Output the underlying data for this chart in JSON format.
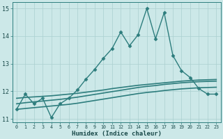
{
  "xlabel": "Humidex (Indice chaleur)",
  "ylabel": "",
  "background_color": "#cce8e8",
  "grid_color": "#aacfcf",
  "line_color": "#2d7d7d",
  "xlim": [
    -0.5,
    23.5
  ],
  "ylim": [
    10.88,
    15.22
  ],
  "yticks": [
    11,
    12,
    13,
    14,
    15
  ],
  "xticks": [
    0,
    1,
    2,
    3,
    4,
    5,
    6,
    7,
    8,
    9,
    10,
    11,
    12,
    13,
    14,
    15,
    16,
    17,
    18,
    19,
    20,
    21,
    22,
    23
  ],
  "series": [
    {
      "x": [
        0,
        1,
        2,
        3,
        4,
        5,
        6,
        7,
        8,
        9,
        10,
        11,
        12,
        13,
        14,
        15,
        16,
        17,
        18,
        19,
        20,
        21,
        22,
        23
      ],
      "y": [
        11.35,
        11.9,
        11.55,
        11.75,
        11.05,
        11.55,
        11.75,
        12.05,
        12.45,
        12.8,
        13.2,
        13.55,
        14.15,
        13.65,
        14.05,
        15.0,
        13.9,
        14.85,
        13.3,
        12.75,
        12.5,
        12.1,
        11.9,
        11.9
      ],
      "marker": "D",
      "markersize": 2.5,
      "linewidth": 1.0,
      "with_markers": true
    },
    {
      "x": [
        0,
        1,
        2,
        3,
        4,
        5,
        6,
        7,
        8,
        9,
        10,
        11,
        12,
        13,
        14,
        15,
        16,
        17,
        18,
        19,
        20,
        21,
        22,
        23
      ],
      "y": [
        11.75,
        11.78,
        11.8,
        11.82,
        11.84,
        11.87,
        11.9,
        11.93,
        11.97,
        12.01,
        12.05,
        12.1,
        12.14,
        12.18,
        12.22,
        12.25,
        12.28,
        12.31,
        12.34,
        12.37,
        12.39,
        12.41,
        12.42,
        12.43
      ],
      "marker": null,
      "linewidth": 1.2,
      "with_markers": false
    },
    {
      "x": [
        0,
        1,
        2,
        3,
        4,
        5,
        6,
        7,
        8,
        9,
        10,
        11,
        12,
        13,
        14,
        15,
        16,
        17,
        18,
        19,
        20,
        21,
        22,
        23
      ],
      "y": [
        11.55,
        11.59,
        11.62,
        11.65,
        11.68,
        11.71,
        11.75,
        11.79,
        11.84,
        11.89,
        11.94,
        11.99,
        12.04,
        12.09,
        12.14,
        12.18,
        12.21,
        12.25,
        12.28,
        12.31,
        12.33,
        12.35,
        12.36,
        12.37
      ],
      "marker": null,
      "linewidth": 1.2,
      "with_markers": false
    },
    {
      "x": [
        0,
        1,
        2,
        3,
        4,
        5,
        6,
        7,
        8,
        9,
        10,
        11,
        12,
        13,
        14,
        15,
        16,
        17,
        18,
        19,
        20,
        21,
        22,
        23
      ],
      "y": [
        11.35,
        11.38,
        11.41,
        11.44,
        11.47,
        11.5,
        11.53,
        11.57,
        11.62,
        11.67,
        11.72,
        11.77,
        11.82,
        11.87,
        11.92,
        11.96,
        11.99,
        12.03,
        12.06,
        12.09,
        12.11,
        12.13,
        12.14,
        12.15
      ],
      "marker": null,
      "linewidth": 1.2,
      "with_markers": false
    }
  ]
}
